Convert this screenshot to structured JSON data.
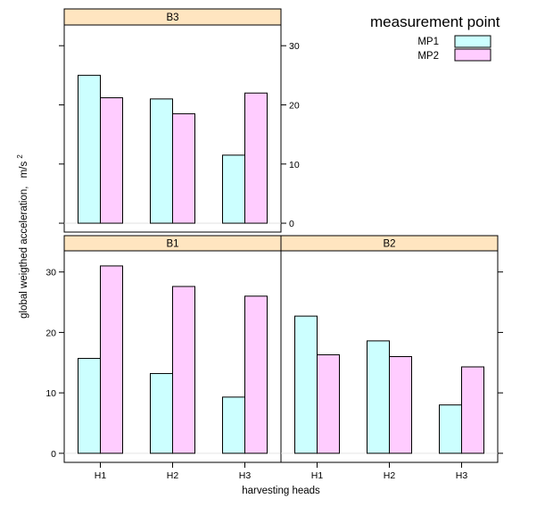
{
  "chart_data": {
    "type": "bar",
    "xlabel": "harvesting heads",
    "ylabel": "global weigthed acceleration,",
    "ylabel_unit": "m/s",
    "ylabel_unit_exp": "2",
    "ylim": [
      -1.5,
      33.5
    ],
    "yticks": [
      0,
      10,
      20,
      30
    ],
    "categories": [
      "H1",
      "H2",
      "H3"
    ],
    "legend": {
      "title": "measurement point",
      "position": "top-right",
      "items": [
        {
          "name": "MP1",
          "color": "#ccffff"
        },
        {
          "name": "MP2",
          "color": "#ffccff"
        }
      ]
    },
    "panels": [
      {
        "strip": "B3",
        "series": [
          {
            "name": "MP1",
            "values": [
              25.0,
              21.0,
              11.5
            ]
          },
          {
            "name": "MP2",
            "values": [
              21.2,
              18.5,
              22.0
            ]
          }
        ]
      },
      {
        "strip": "B1",
        "series": [
          {
            "name": "MP1",
            "values": [
              15.7,
              13.2,
              9.3
            ]
          },
          {
            "name": "MP2",
            "values": [
              31.0,
              27.6,
              26.0
            ]
          }
        ]
      },
      {
        "strip": "B2",
        "series": [
          {
            "name": "MP1",
            "values": [
              22.7,
              18.6,
              8.0
            ]
          },
          {
            "name": "MP2",
            "values": [
              16.3,
              16.0,
              14.3
            ]
          }
        ]
      }
    ]
  },
  "colors": {
    "strip_fill": "#ffe5c0",
    "mp1_fill": "#ccffff",
    "mp2_fill": "#ffccff",
    "stroke": "#000000"
  }
}
